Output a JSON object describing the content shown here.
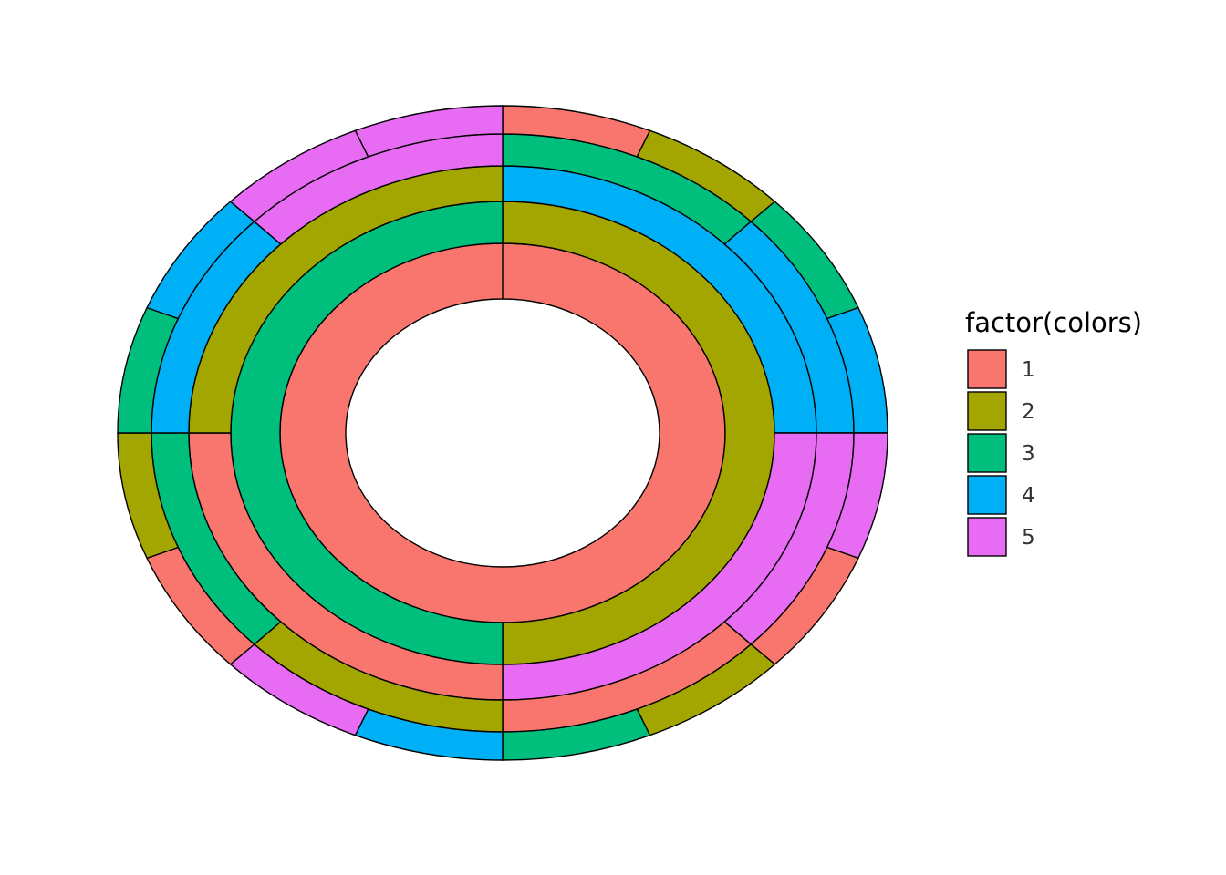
{
  "chart_data": {
    "type": "pie",
    "subtype": "concentric-ring-donut",
    "title": "",
    "xlabel": "",
    "ylabel": "",
    "legend": {
      "title": "factor(colors)",
      "position": "right",
      "entries": [
        {
          "label": "1",
          "color": "#F8766D"
        },
        {
          "label": "2",
          "color": "#A3A500"
        },
        {
          "label": "3",
          "color": "#00BF7D"
        },
        {
          "label": "4",
          "color": "#00B0F6"
        },
        {
          "label": "5",
          "color": "#E76BF3"
        }
      ]
    },
    "rings": [
      {
        "ring": 1,
        "segments": [
          {
            "color_level": "1",
            "start": 0.0,
            "end": 1.0
          }
        ]
      },
      {
        "ring": 2,
        "segments": [
          {
            "color_level": "2",
            "start": 0.0,
            "end": 0.5
          },
          {
            "color_level": "3",
            "start": 0.5,
            "end": 1.0
          }
        ]
      },
      {
        "ring": 3,
        "segments": [
          {
            "color_level": "4",
            "start": 0.0,
            "end": 0.25
          },
          {
            "color_level": "5",
            "start": 0.25,
            "end": 0.5
          },
          {
            "color_level": "1",
            "start": 0.5,
            "end": 0.75
          },
          {
            "color_level": "2",
            "start": 0.75,
            "end": 1.0
          }
        ]
      },
      {
        "ring": 4,
        "segments": [
          {
            "color_level": "3",
            "start": 0.0,
            "end": 0.125
          },
          {
            "color_level": "4",
            "start": 0.125,
            "end": 0.25
          },
          {
            "color_level": "5",
            "start": 0.25,
            "end": 0.375
          },
          {
            "color_level": "1",
            "start": 0.375,
            "end": 0.5
          },
          {
            "color_level": "2",
            "start": 0.5,
            "end": 0.625
          },
          {
            "color_level": "3",
            "start": 0.625,
            "end": 0.75
          },
          {
            "color_level": "4",
            "start": 0.75,
            "end": 0.875
          },
          {
            "color_level": "5",
            "start": 0.875,
            "end": 1.0
          }
        ]
      },
      {
        "ring": 5,
        "segments": [
          {
            "color_level": "1",
            "start": 0.0,
            "end": 0.0625
          },
          {
            "color_level": "2",
            "start": 0.0625,
            "end": 0.125
          },
          {
            "color_level": "3",
            "start": 0.125,
            "end": 0.1875
          },
          {
            "color_level": "4",
            "start": 0.1875,
            "end": 0.25
          },
          {
            "color_level": "5",
            "start": 0.25,
            "end": 0.3125
          },
          {
            "color_level": "1",
            "start": 0.3125,
            "end": 0.375
          },
          {
            "color_level": "2",
            "start": 0.375,
            "end": 0.4375
          },
          {
            "color_level": "3",
            "start": 0.4375,
            "end": 0.5
          },
          {
            "color_level": "4",
            "start": 0.5,
            "end": 0.5625
          },
          {
            "color_level": "5",
            "start": 0.5625,
            "end": 0.625
          },
          {
            "color_level": "1",
            "start": 0.625,
            "end": 0.6875
          },
          {
            "color_level": "2",
            "start": 0.6875,
            "end": 0.75
          },
          {
            "color_level": "3",
            "start": 0.75,
            "end": 0.8125
          },
          {
            "color_level": "4",
            "start": 0.8125,
            "end": 0.875
          },
          {
            "color_level": "5",
            "start": 0.875,
            "end": 0.9375
          },
          {
            "color_level": "5",
            "start": 0.9375,
            "end": 1.0
          }
        ]
      }
    ]
  }
}
